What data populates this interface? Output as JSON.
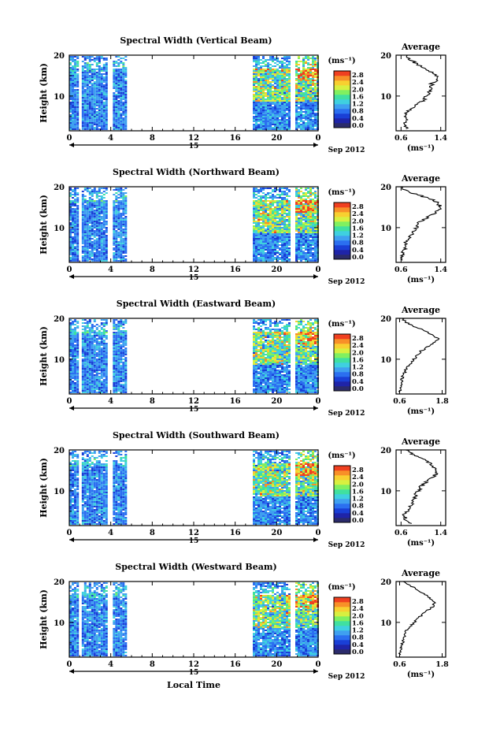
{
  "figure": {
    "xlabel": "Local Time",
    "date_label": "Sep 2012",
    "day_label": "15",
    "units_label": "(ms⁻¹)",
    "avg_title": "Average",
    "avg_xlabel": "(ms⁻¹)",
    "ylabel": "Height (km)",
    "colorbar": {
      "ticks": [
        "0.0",
        "0.4",
        "0.8",
        "1.2",
        "1.6",
        "2.0",
        "2.4",
        "2.8"
      ],
      "colors": [
        "#2b2b6b",
        "#1f24a8",
        "#1a3fd6",
        "#2b6ff0",
        "#3fa0f0",
        "#3fd0e0",
        "#40e0a0",
        "#80f060",
        "#d8f040",
        "#f8d030",
        "#f89028",
        "#f04020"
      ]
    }
  },
  "chart_data": [
    {
      "type": "heatmap",
      "title": "Spectral Width (Vertical Beam)",
      "xlabel": "Local Time",
      "ylabel": "Height (km)",
      "x_ticks": [
        "0",
        "4",
        "8",
        "12",
        "16",
        "20",
        "0"
      ],
      "xlim": [
        0,
        24
      ],
      "y_ticks": [
        "20",
        "10"
      ],
      "ylim": [
        1.5,
        20
      ],
      "data_intervals_h": [
        [
          0,
          0.5
        ],
        [
          0.7,
          0.9
        ],
        [
          1.2,
          3.7
        ],
        [
          4.2,
          5.4
        ],
        [
          17.7,
          21.2
        ],
        [
          21.8,
          24
        ]
      ],
      "colorbar_range": [
        0.0,
        2.8
      ],
      "profile": {
        "title": "Average",
        "x_ticks": [
          "0.6",
          "1.4"
        ],
        "xlim": [
          0.5,
          1.5
        ],
        "xlabel": "(ms⁻¹)",
        "height_km": [
          2,
          3,
          4,
          5,
          6,
          7,
          8,
          9,
          10,
          11,
          12,
          13,
          14,
          15,
          16,
          17,
          18,
          19,
          20
        ],
        "width": [
          0.7,
          0.68,
          0.72,
          0.66,
          0.72,
          0.8,
          0.95,
          1.05,
          1.12,
          1.18,
          1.2,
          1.22,
          1.32,
          1.3,
          1.2,
          1.05,
          0.9,
          0.78,
          0.7
        ]
      }
    },
    {
      "type": "heatmap",
      "title": "Spectral Width (Northward Beam)",
      "xlabel": "Local Time",
      "ylabel": "Height (km)",
      "x_ticks": [
        "0",
        "4",
        "8",
        "12",
        "16",
        "20",
        "0"
      ],
      "xlim": [
        0,
        24
      ],
      "y_ticks": [
        "20",
        "10"
      ],
      "ylim": [
        1.5,
        20
      ],
      "data_intervals_h": [
        [
          0,
          0.5
        ],
        [
          0.7,
          0.9
        ],
        [
          1.2,
          3.7
        ],
        [
          4.2,
          5.4
        ],
        [
          17.7,
          21.2
        ],
        [
          21.8,
          24
        ]
      ],
      "colorbar_range": [
        0.0,
        2.8
      ],
      "profile": {
        "title": "Average",
        "x_ticks": [
          "0.6",
          "1.4"
        ],
        "xlim": [
          0.5,
          1.5
        ],
        "xlabel": "(ms⁻¹)",
        "height_km": [
          2,
          3,
          4,
          5,
          6,
          7,
          8,
          9,
          10,
          11,
          12,
          13,
          14,
          15,
          16,
          17,
          18,
          19,
          20
        ],
        "width": [
          0.6,
          0.65,
          0.62,
          0.68,
          0.7,
          0.72,
          0.78,
          0.85,
          0.9,
          0.95,
          1.05,
          1.2,
          1.32,
          1.4,
          1.35,
          1.2,
          0.95,
          0.7,
          0.6
        ]
      }
    },
    {
      "type": "heatmap",
      "title": "Spectral Width (Eastward Beam)",
      "xlabel": "Local Time",
      "ylabel": "Height (km)",
      "x_ticks": [
        "0",
        "4",
        "8",
        "12",
        "16",
        "20",
        "0"
      ],
      "xlim": [
        0,
        24
      ],
      "y_ticks": [
        "20",
        "10"
      ],
      "ylim": [
        1.5,
        20
      ],
      "data_intervals_h": [
        [
          0,
          0.5
        ],
        [
          0.7,
          0.9
        ],
        [
          1.2,
          3.7
        ],
        [
          4.2,
          5.4
        ],
        [
          17.7,
          21.2
        ],
        [
          21.8,
          24
        ]
      ],
      "colorbar_range": [
        0.0,
        2.8
      ],
      "profile": {
        "title": "Average",
        "x_ticks": [
          "0.6",
          "1.8"
        ],
        "xlim": [
          0.5,
          1.9
        ],
        "xlabel": "(ms⁻¹)",
        "height_km": [
          2,
          3,
          4,
          5,
          6,
          7,
          8,
          9,
          10,
          11,
          12,
          13,
          14,
          15,
          16,
          17,
          18,
          19,
          20
        ],
        "width": [
          0.6,
          0.62,
          0.64,
          0.66,
          0.7,
          0.75,
          0.82,
          0.9,
          1.0,
          1.1,
          1.2,
          1.4,
          1.55,
          1.7,
          1.5,
          1.3,
          1.0,
          0.8,
          0.65
        ]
      }
    },
    {
      "type": "heatmap",
      "title": "Spectral Width (Southward Beam)",
      "xlabel": "Local Time",
      "ylabel": "Height (km)",
      "x_ticks": [
        "0",
        "4",
        "8",
        "12",
        "16",
        "20",
        "0"
      ],
      "xlim": [
        0,
        24
      ],
      "y_ticks": [
        "20",
        "10"
      ],
      "ylim": [
        1.5,
        20
      ],
      "data_intervals_h": [
        [
          0,
          0.5
        ],
        [
          0.7,
          0.9
        ],
        [
          1.2,
          3.7
        ],
        [
          4.2,
          5.4
        ],
        [
          17.7,
          21.2
        ],
        [
          21.8,
          24
        ]
      ],
      "colorbar_range": [
        0.0,
        2.8
      ],
      "profile": {
        "title": "Average",
        "x_ticks": [
          "0.6",
          "1.4"
        ],
        "xlim": [
          0.5,
          1.5
        ],
        "xlabel": "(ms⁻¹)",
        "height_km": [
          2,
          3,
          4,
          5,
          6,
          7,
          8,
          9,
          10,
          11,
          12,
          13,
          14,
          15,
          16,
          17,
          18,
          19,
          20
        ],
        "width": [
          0.8,
          0.7,
          0.65,
          0.72,
          0.78,
          0.82,
          0.85,
          0.9,
          0.95,
          1.0,
          1.1,
          1.2,
          1.3,
          1.35,
          1.25,
          1.15,
          1.0,
          0.82,
          0.7
        ]
      }
    },
    {
      "type": "heatmap",
      "title": "Spectral Width (Westward Beam)",
      "xlabel": "Local Time",
      "ylabel": "Height (km)",
      "x_ticks": [
        "0",
        "4",
        "8",
        "12",
        "16",
        "20",
        "0"
      ],
      "xlim": [
        0,
        24
      ],
      "y_ticks": [
        "20",
        "10"
      ],
      "ylim": [
        1.5,
        20
      ],
      "data_intervals_h": [
        [
          0,
          0.5
        ],
        [
          0.7,
          0.9
        ],
        [
          1.2,
          3.7
        ],
        [
          4.2,
          5.4
        ],
        [
          17.7,
          21.2
        ],
        [
          21.8,
          24
        ]
      ],
      "colorbar_range": [
        0.0,
        2.8
      ],
      "profile": {
        "title": "Average",
        "x_ticks": [
          "0.6",
          "1.8"
        ],
        "xlim": [
          0.5,
          1.9
        ],
        "xlabel": "(ms⁻¹)",
        "height_km": [
          2,
          3,
          4,
          5,
          6,
          7,
          8,
          9,
          10,
          11,
          12,
          13,
          14,
          15,
          16,
          17,
          18,
          19,
          20
        ],
        "width": [
          0.6,
          0.62,
          0.65,
          0.68,
          0.7,
          0.74,
          0.8,
          0.9,
          1.0,
          1.12,
          1.25,
          1.4,
          1.55,
          1.6,
          1.45,
          1.3,
          1.1,
          0.9,
          0.72
        ]
      }
    }
  ]
}
